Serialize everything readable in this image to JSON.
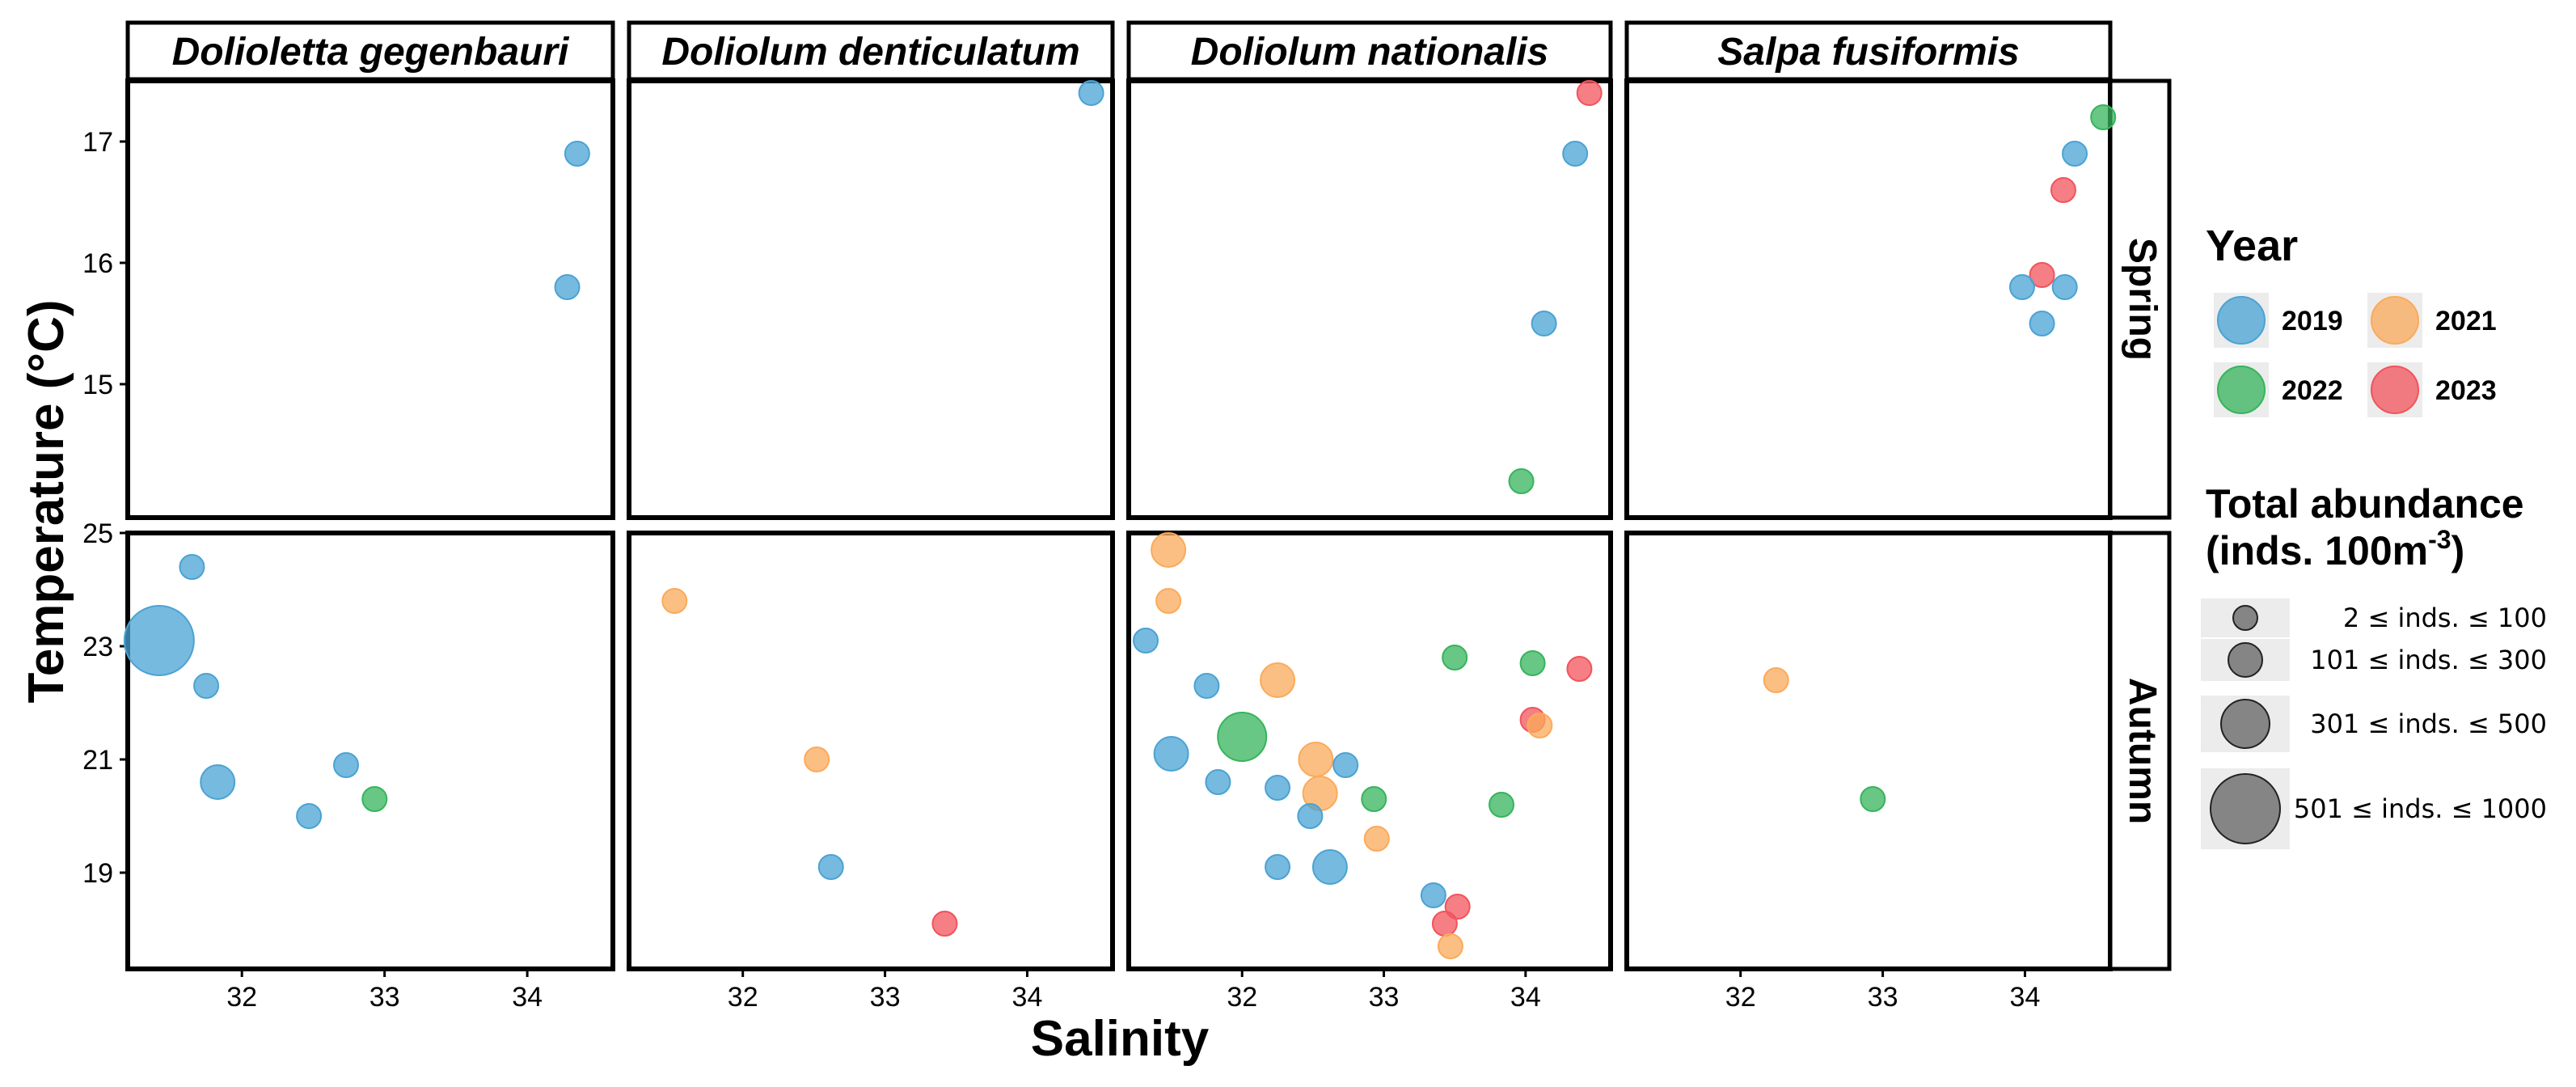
{
  "chart_data": {
    "type": "scatter",
    "xlabel": "Salinity",
    "ylabel": "Temperature (°C)",
    "facet_columns": [
      "Dolioletta gegenbauri",
      "Doliolum denticulatum",
      "Doliolum nationalis",
      "Salpa fusiformis"
    ],
    "facet_rows": [
      "Spring",
      "Autumn"
    ],
    "x_range": [
      31.2,
      34.6
    ],
    "x_ticks": [
      "32",
      "33",
      "34"
    ],
    "x_tick_values": [
      32,
      33,
      34
    ],
    "rows": {
      "Spring": {
        "y_range": [
          13.9,
          17.5
        ],
        "y_ticks": [
          "17",
          "16",
          "15"
        ],
        "y_tick_values": [
          17,
          16,
          15
        ]
      },
      "Autumn": {
        "y_range": [
          17.3,
          25
        ],
        "y_ticks": [
          "25",
          "23",
          "21",
          "19"
        ],
        "y_tick_values": [
          25,
          23,
          21,
          19
        ]
      }
    },
    "year_colors": {
      "2019": "#4aa3d4",
      "2021": "#fbaa5a",
      "2022": "#36b45c",
      "2023": "#f1545c"
    },
    "legend": {
      "year_title": "Year",
      "years": [
        "2019",
        "2021",
        "2022",
        "2023"
      ],
      "size_title_line1": "Total abundance",
      "size_title_line2_main": "(inds. 100m",
      "size_title_line2_sup": "-3",
      "size_title_line2_end": ")",
      "size_classes": [
        {
          "label": "2 ≤ inds. ≤ 100",
          "class": 1
        },
        {
          "label": "101 ≤ inds. ≤ 300",
          "class": 2
        },
        {
          "label": "301 ≤ inds. ≤ 500",
          "class": 3
        },
        {
          "label": "501 ≤ inds. ≤ 1000",
          "class": 4
        }
      ]
    },
    "points": [
      {
        "species": "Dolioletta gegenbauri",
        "season": "Spring",
        "year": "2019",
        "x": 34.35,
        "y": 16.9,
        "size_class": 1
      },
      {
        "species": "Dolioletta gegenbauri",
        "season": "Spring",
        "year": "2019",
        "x": 34.28,
        "y": 15.8,
        "size_class": 1
      },
      {
        "species": "Dolioletta gegenbauri",
        "season": "Autumn",
        "year": "2019",
        "x": 31.65,
        "y": 24.4,
        "size_class": 1
      },
      {
        "species": "Dolioletta gegenbauri",
        "season": "Autumn",
        "year": "2019",
        "x": 31.42,
        "y": 23.1,
        "size_class": 4
      },
      {
        "species": "Dolioletta gegenbauri",
        "season": "Autumn",
        "year": "2019",
        "x": 31.75,
        "y": 22.3,
        "size_class": 1
      },
      {
        "species": "Dolioletta gegenbauri",
        "season": "Autumn",
        "year": "2019",
        "x": 31.83,
        "y": 20.6,
        "size_class": 2
      },
      {
        "species": "Dolioletta gegenbauri",
        "season": "Autumn",
        "year": "2019",
        "x": 32.73,
        "y": 20.9,
        "size_class": 1
      },
      {
        "species": "Dolioletta gegenbauri",
        "season": "Autumn",
        "year": "2019",
        "x": 32.47,
        "y": 20.0,
        "size_class": 1
      },
      {
        "species": "Dolioletta gegenbauri",
        "season": "Autumn",
        "year": "2022",
        "x": 32.93,
        "y": 20.3,
        "size_class": 1
      },
      {
        "species": "Doliolum denticulatum",
        "season": "Spring",
        "year": "2019",
        "x": 34.45,
        "y": 17.4,
        "size_class": 1
      },
      {
        "species": "Doliolum denticulatum",
        "season": "Autumn",
        "year": "2021",
        "x": 31.52,
        "y": 23.8,
        "size_class": 1
      },
      {
        "species": "Doliolum denticulatum",
        "season": "Autumn",
        "year": "2021",
        "x": 32.52,
        "y": 21.0,
        "size_class": 1
      },
      {
        "species": "Doliolum denticulatum",
        "season": "Autumn",
        "year": "2019",
        "x": 32.62,
        "y": 19.1,
        "size_class": 1
      },
      {
        "species": "Doliolum denticulatum",
        "season": "Autumn",
        "year": "2023",
        "x": 33.42,
        "y": 18.1,
        "size_class": 1
      },
      {
        "species": "Doliolum nationalis",
        "season": "Spring",
        "year": "2023",
        "x": 34.45,
        "y": 17.4,
        "size_class": 1
      },
      {
        "species": "Doliolum nationalis",
        "season": "Spring",
        "year": "2019",
        "x": 34.35,
        "y": 16.9,
        "size_class": 1
      },
      {
        "species": "Doliolum nationalis",
        "season": "Spring",
        "year": "2019",
        "x": 34.13,
        "y": 15.5,
        "size_class": 1
      },
      {
        "species": "Doliolum nationalis",
        "season": "Spring",
        "year": "2022",
        "x": 33.97,
        "y": 14.2,
        "size_class": 1
      },
      {
        "species": "Doliolum nationalis",
        "season": "Autumn",
        "year": "2021",
        "x": 31.48,
        "y": 24.7,
        "size_class": 2
      },
      {
        "species": "Doliolum nationalis",
        "season": "Autumn",
        "year": "2021",
        "x": 31.48,
        "y": 23.8,
        "size_class": 1
      },
      {
        "species": "Doliolum nationalis",
        "season": "Autumn",
        "year": "2019",
        "x": 31.32,
        "y": 23.1,
        "size_class": 1
      },
      {
        "species": "Doliolum nationalis",
        "season": "Autumn",
        "year": "2019",
        "x": 31.75,
        "y": 22.3,
        "size_class": 1
      },
      {
        "species": "Doliolum nationalis",
        "season": "Autumn",
        "year": "2021",
        "x": 32.25,
        "y": 22.4,
        "size_class": 2
      },
      {
        "species": "Doliolum nationalis",
        "season": "Autumn",
        "year": "2022",
        "x": 33.5,
        "y": 22.8,
        "size_class": 1
      },
      {
        "species": "Doliolum nationalis",
        "season": "Autumn",
        "year": "2022",
        "x": 34.05,
        "y": 22.7,
        "size_class": 1
      },
      {
        "species": "Doliolum nationalis",
        "season": "Autumn",
        "year": "2023",
        "x": 34.38,
        "y": 22.6,
        "size_class": 1
      },
      {
        "species": "Doliolum nationalis",
        "season": "Autumn",
        "year": "2023",
        "x": 34.05,
        "y": 21.7,
        "size_class": 1
      },
      {
        "species": "Doliolum nationalis",
        "season": "Autumn",
        "year": "2021",
        "x": 34.1,
        "y": 21.6,
        "size_class": 1
      },
      {
        "species": "Doliolum nationalis",
        "season": "Autumn",
        "year": "2022",
        "x": 32.0,
        "y": 21.4,
        "size_class": 3
      },
      {
        "species": "Doliolum nationalis",
        "season": "Autumn",
        "year": "2019",
        "x": 31.5,
        "y": 21.1,
        "size_class": 2
      },
      {
        "species": "Doliolum nationalis",
        "season": "Autumn",
        "year": "2021",
        "x": 32.52,
        "y": 21.0,
        "size_class": 2
      },
      {
        "species": "Doliolum nationalis",
        "season": "Autumn",
        "year": "2019",
        "x": 32.73,
        "y": 20.9,
        "size_class": 1
      },
      {
        "species": "Doliolum nationalis",
        "season": "Autumn",
        "year": "2019",
        "x": 31.83,
        "y": 20.6,
        "size_class": 1
      },
      {
        "species": "Doliolum nationalis",
        "season": "Autumn",
        "year": "2019",
        "x": 32.25,
        "y": 20.5,
        "size_class": 1
      },
      {
        "species": "Doliolum nationalis",
        "season": "Autumn",
        "year": "2021",
        "x": 32.55,
        "y": 20.4,
        "size_class": 2
      },
      {
        "species": "Doliolum nationalis",
        "season": "Autumn",
        "year": "2022",
        "x": 32.93,
        "y": 20.3,
        "size_class": 1
      },
      {
        "species": "Doliolum nationalis",
        "season": "Autumn",
        "year": "2022",
        "x": 33.83,
        "y": 20.2,
        "size_class": 1
      },
      {
        "species": "Doliolum nationalis",
        "season": "Autumn",
        "year": "2019",
        "x": 32.48,
        "y": 20.0,
        "size_class": 1
      },
      {
        "species": "Doliolum nationalis",
        "season": "Autumn",
        "year": "2021",
        "x": 32.95,
        "y": 19.6,
        "size_class": 1
      },
      {
        "species": "Doliolum nationalis",
        "season": "Autumn",
        "year": "2019",
        "x": 32.25,
        "y": 19.1,
        "size_class": 1
      },
      {
        "species": "Doliolum nationalis",
        "season": "Autumn",
        "year": "2019",
        "x": 32.62,
        "y": 19.1,
        "size_class": 2
      },
      {
        "species": "Doliolum nationalis",
        "season": "Autumn",
        "year": "2019",
        "x": 33.35,
        "y": 18.6,
        "size_class": 1
      },
      {
        "species": "Doliolum nationalis",
        "season": "Autumn",
        "year": "2023",
        "x": 33.52,
        "y": 18.4,
        "size_class": 1
      },
      {
        "species": "Doliolum nationalis",
        "season": "Autumn",
        "year": "2023",
        "x": 33.43,
        "y": 18.1,
        "size_class": 1
      },
      {
        "species": "Doliolum nationalis",
        "season": "Autumn",
        "year": "2021",
        "x": 33.47,
        "y": 17.7,
        "size_class": 1
      },
      {
        "species": "Salpa fusiformis",
        "season": "Spring",
        "year": "2022",
        "x": 34.55,
        "y": 17.2,
        "size_class": 1
      },
      {
        "species": "Salpa fusiformis",
        "season": "Spring",
        "year": "2019",
        "x": 34.35,
        "y": 16.9,
        "size_class": 1
      },
      {
        "species": "Salpa fusiformis",
        "season": "Spring",
        "year": "2023",
        "x": 34.27,
        "y": 16.6,
        "size_class": 1
      },
      {
        "species": "Salpa fusiformis",
        "season": "Spring",
        "year": "2023",
        "x": 34.12,
        "y": 15.9,
        "size_class": 1
      },
      {
        "species": "Salpa fusiformis",
        "season": "Spring",
        "year": "2019",
        "x": 33.98,
        "y": 15.8,
        "size_class": 1
      },
      {
        "species": "Salpa fusiformis",
        "season": "Spring",
        "year": "2019",
        "x": 34.28,
        "y": 15.8,
        "size_class": 1
      },
      {
        "species": "Salpa fusiformis",
        "season": "Spring",
        "year": "2019",
        "x": 34.12,
        "y": 15.5,
        "size_class": 1
      },
      {
        "species": "Salpa fusiformis",
        "season": "Autumn",
        "year": "2021",
        "x": 32.25,
        "y": 22.4,
        "size_class": 1
      },
      {
        "species": "Salpa fusiformis",
        "season": "Autumn",
        "year": "2022",
        "x": 32.93,
        "y": 20.3,
        "size_class": 1
      }
    ]
  }
}
